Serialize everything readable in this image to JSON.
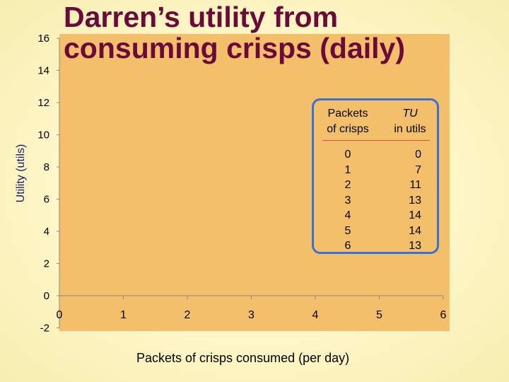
{
  "chart_data": {
    "type": "line",
    "title": "Darren’s utility from consuming crisps (daily)",
    "title_lines": [
      "Darren’s utility from",
      "consuming crisps (daily)"
    ],
    "xlabel": "Packets of crisps consumed (per day)",
    "ylabel": "Utility (utils)",
    "xlim": [
      0,
      6
    ],
    "ylim": [
      -2,
      16
    ],
    "x_ticks": [
      0,
      1,
      2,
      3,
      4,
      5,
      6
    ],
    "y_ticks": [
      -2,
      0,
      2,
      4,
      6,
      8,
      10,
      12,
      14,
      16
    ],
    "grid": false,
    "series": [],
    "table": {
      "headers": [
        {
          "line1": "Packets",
          "line2": "of crisps"
        },
        {
          "line1": "TU",
          "line2": "in utils"
        }
      ],
      "packets": [
        "0",
        "1",
        "2",
        "3",
        "4",
        "5",
        "6"
      ],
      "tu": [
        "0",
        "7",
        "11",
        "13",
        "14",
        "14",
        "13"
      ]
    }
  },
  "colors": {
    "plot_area": "#f4bf6b",
    "title": "#6b0a3a",
    "table_border": "#3a6fd8",
    "table_rule": "#d05050",
    "axis": "#888888"
  }
}
